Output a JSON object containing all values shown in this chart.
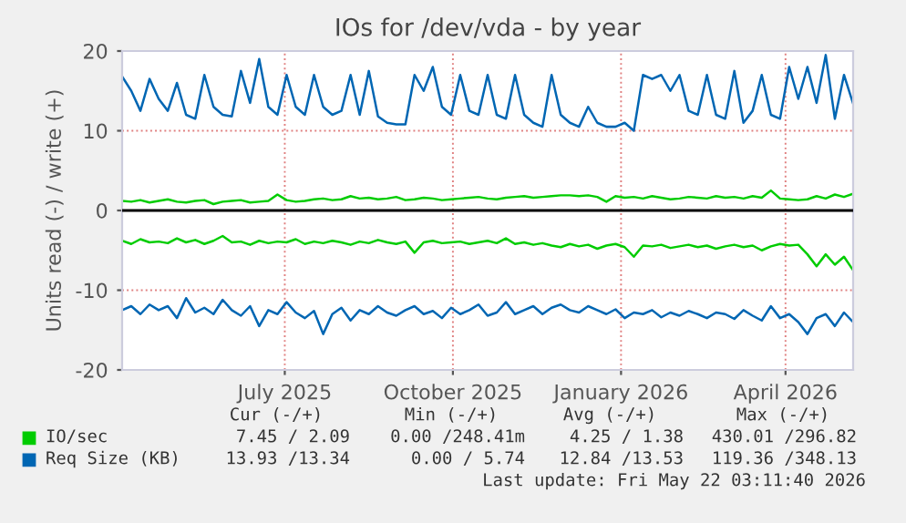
{
  "chart_data": {
    "type": "line",
    "title": "IOs for /dev/vda - by year",
    "ylabel": "Units read (-) / write (+)",
    "x": [
      "2025-04-17",
      "2025-04-22",
      "2025-04-27",
      "2025-05-02",
      "2025-05-07",
      "2025-05-12",
      "2025-05-17",
      "2025-05-22",
      "2025-05-27",
      "2025-06-01",
      "2025-06-06",
      "2025-06-11",
      "2025-06-16",
      "2025-06-21",
      "2025-06-26",
      "2025-07-01",
      "2025-07-06",
      "2025-07-11",
      "2025-07-16",
      "2025-07-21",
      "2025-07-26",
      "2025-07-31",
      "2025-08-05",
      "2025-08-10",
      "2025-08-15",
      "2025-08-20",
      "2025-08-25",
      "2025-08-30",
      "2025-09-04",
      "2025-09-09",
      "2025-09-14",
      "2025-09-19",
      "2025-09-24",
      "2025-09-29",
      "2025-10-04",
      "2025-10-09",
      "2025-10-14",
      "2025-10-19",
      "2025-10-24",
      "2025-10-29",
      "2025-11-03",
      "2025-11-08",
      "2025-11-13",
      "2025-11-18",
      "2025-11-23",
      "2025-11-28",
      "2025-12-03",
      "2025-12-08",
      "2025-12-13",
      "2025-12-18",
      "2025-12-23",
      "2025-12-28",
      "2026-01-02",
      "2026-01-07",
      "2026-01-12",
      "2026-01-17",
      "2026-01-22",
      "2026-01-27",
      "2026-02-01",
      "2026-02-06",
      "2026-02-11",
      "2026-02-16",
      "2026-02-21",
      "2026-02-26",
      "2026-03-03",
      "2026-03-08",
      "2026-03-13",
      "2026-03-18",
      "2026-03-23",
      "2026-03-28",
      "2026-04-02",
      "2026-04-07",
      "2026-04-12",
      "2026-04-17",
      "2026-04-22",
      "2026-04-27",
      "2026-05-02",
      "2026-05-07",
      "2026-05-12",
      "2026-05-17",
      "2026-05-22"
    ],
    "series": [
      {
        "name": "IO/sec",
        "color": "#00cc00",
        "values": [
          1.2,
          1.1,
          1.3,
          1.0,
          1.2,
          1.4,
          1.1,
          1.0,
          1.2,
          1.3,
          0.8,
          1.1,
          1.2,
          1.3,
          1.0,
          1.1,
          1.2,
          2.0,
          1.3,
          1.1,
          1.2,
          1.4,
          1.5,
          1.3,
          1.4,
          1.8,
          1.5,
          1.6,
          1.4,
          1.5,
          1.7,
          1.3,
          1.4,
          1.6,
          1.5,
          1.3,
          1.4,
          1.5,
          1.6,
          1.7,
          1.5,
          1.4,
          1.6,
          1.7,
          1.8,
          1.6,
          1.7,
          1.8,
          1.9,
          1.9,
          1.8,
          1.9,
          1.7,
          1.1,
          1.8,
          1.6,
          1.7,
          1.5,
          1.8,
          1.6,
          1.4,
          1.5,
          1.7,
          1.6,
          1.5,
          1.8,
          1.6,
          1.7,
          1.5,
          1.8,
          1.6,
          2.5,
          1.5,
          1.4,
          1.3,
          1.4,
          1.8,
          1.5,
          2.0,
          1.7,
          2.1
        ]
      },
      {
        "color": "#00cc00",
        "values": [
          -3.8,
          -4.2,
          -3.6,
          -4.0,
          -3.9,
          -4.1,
          -3.5,
          -4.0,
          -3.7,
          -4.2,
          -3.8,
          -3.2,
          -4.0,
          -3.9,
          -4.3,
          -3.8,
          -4.1,
          -3.9,
          -4.0,
          -3.6,
          -4.2,
          -3.9,
          -4.1,
          -3.8,
          -4.0,
          -4.3,
          -3.9,
          -4.1,
          -3.7,
          -4.0,
          -4.2,
          -3.9,
          -5.3,
          -4.0,
          -3.8,
          -4.1,
          -4.0,
          -3.9,
          -4.2,
          -4.0,
          -3.8,
          -4.1,
          -3.5,
          -4.2,
          -4.0,
          -4.3,
          -4.1,
          -4.4,
          -4.6,
          -4.2,
          -4.5,
          -4.3,
          -4.8,
          -4.4,
          -4.2,
          -4.6,
          -5.8,
          -4.4,
          -4.5,
          -4.3,
          -4.7,
          -4.5,
          -4.3,
          -4.6,
          -4.4,
          -4.8,
          -4.5,
          -4.3,
          -4.6,
          -4.4,
          -5.0,
          -4.5,
          -4.2,
          -4.4,
          -4.3,
          -5.5,
          -7.0,
          -5.5,
          -6.8,
          -5.8,
          -7.5
        ]
      },
      {
        "name": "Req Size (KB)",
        "color": "#0066b3",
        "values": [
          16.8,
          15,
          12.5,
          16.5,
          14,
          12.5,
          16,
          12,
          11.5,
          17,
          13,
          12,
          11.8,
          17.5,
          13.5,
          19,
          13,
          12,
          17,
          13,
          12,
          17,
          13,
          12,
          12.5,
          17,
          12,
          17.5,
          11.8,
          11,
          10.8,
          10.8,
          17,
          15,
          18,
          13,
          12,
          17,
          12.5,
          12,
          17,
          12,
          11.5,
          17,
          12,
          11,
          10.5,
          17,
          12,
          11,
          10.5,
          13,
          11,
          10.5,
          10.5,
          11,
          10,
          17,
          16.5,
          17,
          15,
          17,
          12.5,
          12,
          17,
          12,
          11.5,
          17.5,
          11,
          12.5,
          17,
          12,
          11.5,
          18,
          14,
          18,
          13.5,
          19.5,
          11.5,
          17,
          13.4
        ]
      },
      {
        "color": "#0066b3",
        "values": [
          -12.5,
          -12.0,
          -13.0,
          -11.8,
          -12.5,
          -12.0,
          -13.5,
          -11.0,
          -12.8,
          -12.2,
          -13.0,
          -11.2,
          -12.5,
          -13.2,
          -12.0,
          -14.5,
          -12.5,
          -13.0,
          -11.5,
          -12.8,
          -13.5,
          -12.6,
          -15.5,
          -13.0,
          -12.2,
          -13.8,
          -12.5,
          -13.0,
          -12.0,
          -12.8,
          -13.2,
          -12.5,
          -12.0,
          -13.0,
          -12.6,
          -13.5,
          -12.2,
          -13.0,
          -12.5,
          -11.8,
          -13.2,
          -12.8,
          -11.5,
          -13.0,
          -12.5,
          -12.0,
          -13.0,
          -12.2,
          -11.8,
          -12.5,
          -12.8,
          -12.0,
          -12.5,
          -13.0,
          -12.4,
          -13.5,
          -12.8,
          -13.0,
          -12.5,
          -13.4,
          -12.8,
          -13.2,
          -12.6,
          -13.0,
          -13.5,
          -12.8,
          -13.0,
          -13.6,
          -12.5,
          -13.2,
          -13.8,
          -12.0,
          -13.5,
          -13.0,
          -14.0,
          -15.5,
          -13.5,
          -13.0,
          -14.5,
          -12.8,
          -14.0
        ]
      }
    ],
    "xlim": [
      "2025-04-17",
      "2026-05-22"
    ],
    "xticks": [
      {
        "value": "2025-07-15",
        "label": "July 2025"
      },
      {
        "value": "2025-10-15",
        "label": "October 2025"
      },
      {
        "value": "2026-01-15",
        "label": "January 2026"
      },
      {
        "value": "2026-04-15",
        "label": "April 2026"
      }
    ],
    "ylim": [
      -20,
      20
    ],
    "yticks": [
      -20,
      -10,
      0,
      10,
      20
    ],
    "ref_lines": [
      {
        "axis": "y",
        "value": 0,
        "color": "#000000"
      }
    ],
    "grid": true,
    "legend": "bottom",
    "annotations": [
      "Cur (-/+)",
      "Min (-/+)",
      "Avg (-/+)",
      "Max (-/+)",
      "7.45 / 2.09",
      "0.00 /248.41m",
      "4.25 / 1.38",
      "430.01 /296.82",
      "13.93 /13.34",
      "0.00 / 5.74",
      "12.84 /13.53",
      "119.36 /348.13",
      "Last update: Fri May 22 03:11:40 2026"
    ]
  }
}
